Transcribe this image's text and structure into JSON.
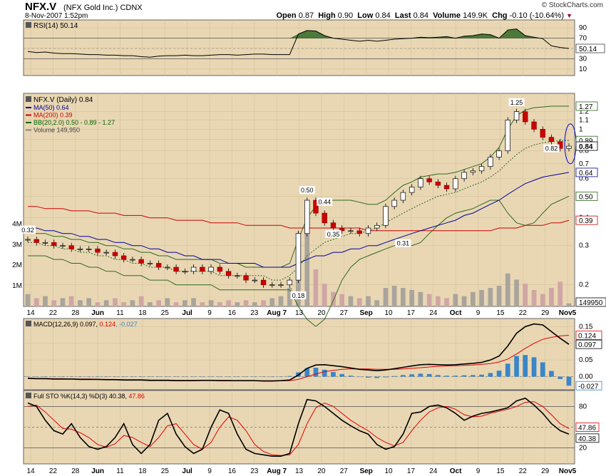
{
  "header": {
    "symbol": "NFX.V",
    "name": "(NFX Gold Inc.)",
    "exchange": "CDNX",
    "datetime": "8-Nov-2007 1:52pm",
    "open_label": "Open",
    "open": "0.87",
    "high_label": "High",
    "high": "0.90",
    "low_label": "Low",
    "low": "0.84",
    "last_label": "Last",
    "last": "0.84",
    "volume_label": "Volume",
    "volume": "149.9K",
    "chg_label": "Chg",
    "chg": "-0.10 (-10.64%)",
    "logo": "© StockCharts.com"
  },
  "chart_data": [
    {
      "type": "line",
      "panel": "rsi",
      "title": "RSI(14) 50.14",
      "y_ticks": [
        10,
        30,
        50,
        70,
        90
      ],
      "last_value_label": "50.14",
      "ylim": [
        0,
        100
      ],
      "series": [
        {
          "name": "RSI(14)",
          "values": [
            44,
            42,
            43,
            41,
            40,
            40,
            39,
            38,
            38,
            37,
            37,
            36,
            36,
            34,
            33,
            35,
            36,
            36,
            37,
            36,
            36,
            37,
            38,
            38,
            37,
            38,
            39,
            39,
            38,
            38,
            38,
            78,
            85,
            84,
            75,
            70,
            68,
            66,
            64,
            66,
            64,
            66,
            68,
            69,
            70,
            72,
            71,
            72,
            73,
            70,
            74,
            75,
            78,
            77,
            70,
            86,
            88,
            75,
            72,
            69,
            55,
            52,
            50
          ]
        },
        {
          "name": "Upper",
          "values": [
            70
          ]
        },
        {
          "name": "Lower",
          "values": [
            30
          ]
        }
      ]
    },
    {
      "type": "candlestick",
      "panel": "price",
      "title": "NFX.V (Daily) 0.84",
      "scale": "log",
      "ylim": [
        0.16,
        1.45
      ],
      "y_ticks": [
        0.2,
        0.3,
        0.4,
        0.5,
        0.6,
        0.7,
        0.8,
        0.9,
        1.0,
        1.1,
        1.2
      ],
      "volume_ticks": [
        "1M",
        "2M",
        "3M",
        "4M"
      ],
      "legend": [
        {
          "name": "MA(50) 0.64",
          "color": "#000099"
        },
        {
          "name": "MA(200) 0.39",
          "color": "#cc0000"
        },
        {
          "name": "BB(20,2.0) 0.50 - 0.89 - 1.27",
          "color": "#006600"
        },
        {
          "name": "Volume 149,950",
          "color": "#888888"
        }
      ],
      "annotations": [
        "0.32",
        "0.50",
        "0.44",
        "0.35",
        "0.31",
        "0.18",
        "1.25",
        "0.82"
      ],
      "right_labels": [
        "1.27",
        "0.89",
        "0.84",
        "0.64",
        "0.50",
        "0.39",
        "149950"
      ],
      "last_value_label": "0.84",
      "close": [
        0.32,
        0.31,
        0.31,
        0.3,
        0.3,
        0.29,
        0.29,
        0.29,
        0.28,
        0.28,
        0.27,
        0.26,
        0.26,
        0.25,
        0.25,
        0.24,
        0.24,
        0.23,
        0.23,
        0.24,
        0.23,
        0.24,
        0.23,
        0.22,
        0.22,
        0.21,
        0.21,
        0.2,
        0.2,
        0.2,
        0.21,
        0.34,
        0.48,
        0.42,
        0.38,
        0.36,
        0.35,
        0.35,
        0.34,
        0.36,
        0.37,
        0.45,
        0.48,
        0.52,
        0.55,
        0.6,
        0.58,
        0.56,
        0.54,
        0.6,
        0.64,
        0.65,
        0.68,
        0.75,
        0.8,
        1.1,
        1.2,
        1.08,
        1.0,
        0.92,
        0.88,
        0.82,
        0.84
      ],
      "ma50": [
        0.36,
        0.36,
        0.35,
        0.35,
        0.34,
        0.34,
        0.33,
        0.33,
        0.32,
        0.32,
        0.31,
        0.31,
        0.3,
        0.3,
        0.29,
        0.29,
        0.28,
        0.28,
        0.27,
        0.27,
        0.26,
        0.26,
        0.26,
        0.25,
        0.25,
        0.25,
        0.25,
        0.24,
        0.24,
        0.24,
        0.24,
        0.25,
        0.26,
        0.27,
        0.27,
        0.28,
        0.28,
        0.29,
        0.29,
        0.3,
        0.3,
        0.31,
        0.32,
        0.33,
        0.34,
        0.35,
        0.36,
        0.37,
        0.38,
        0.39,
        0.41,
        0.42,
        0.44,
        0.46,
        0.48,
        0.51,
        0.54,
        0.57,
        0.59,
        0.61,
        0.62,
        0.63,
        0.64
      ],
      "ma200": [
        0.45,
        0.45,
        0.44,
        0.44,
        0.44,
        0.43,
        0.43,
        0.43,
        0.42,
        0.42,
        0.42,
        0.41,
        0.41,
        0.41,
        0.4,
        0.4,
        0.4,
        0.39,
        0.39,
        0.39,
        0.39,
        0.38,
        0.38,
        0.38,
        0.38,
        0.37,
        0.37,
        0.37,
        0.37,
        0.37,
        0.36,
        0.36,
        0.36,
        0.36,
        0.36,
        0.36,
        0.36,
        0.36,
        0.36,
        0.35,
        0.35,
        0.35,
        0.35,
        0.35,
        0.35,
        0.35,
        0.35,
        0.35,
        0.35,
        0.35,
        0.35,
        0.35,
        0.35,
        0.35,
        0.36,
        0.36,
        0.36,
        0.37,
        0.37,
        0.37,
        0.38,
        0.38,
        0.39
      ],
      "bb_upper": [
        0.35,
        0.34,
        0.34,
        0.33,
        0.33,
        0.32,
        0.32,
        0.31,
        0.31,
        0.3,
        0.3,
        0.29,
        0.29,
        0.28,
        0.28,
        0.27,
        0.27,
        0.26,
        0.26,
        0.26,
        0.26,
        0.26,
        0.25,
        0.25,
        0.25,
        0.24,
        0.24,
        0.24,
        0.24,
        0.24,
        0.25,
        0.32,
        0.4,
        0.45,
        0.47,
        0.48,
        0.48,
        0.48,
        0.47,
        0.46,
        0.46,
        0.48,
        0.52,
        0.56,
        0.58,
        0.61,
        0.62,
        0.63,
        0.63,
        0.64,
        0.66,
        0.68,
        0.7,
        0.75,
        0.83,
        1.0,
        1.15,
        1.22,
        1.25,
        1.26,
        1.27,
        1.27,
        1.27
      ],
      "bb_mid": [
        0.31,
        0.31,
        0.3,
        0.3,
        0.29,
        0.29,
        0.28,
        0.28,
        0.27,
        0.27,
        0.26,
        0.26,
        0.25,
        0.25,
        0.24,
        0.24,
        0.24,
        0.23,
        0.23,
        0.23,
        0.23,
        0.23,
        0.22,
        0.22,
        0.22,
        0.22,
        0.22,
        0.22,
        0.21,
        0.21,
        0.22,
        0.24,
        0.27,
        0.29,
        0.31,
        0.32,
        0.33,
        0.34,
        0.34,
        0.35,
        0.36,
        0.38,
        0.4,
        0.42,
        0.44,
        0.46,
        0.48,
        0.5,
        0.51,
        0.52,
        0.54,
        0.56,
        0.58,
        0.61,
        0.65,
        0.71,
        0.77,
        0.82,
        0.85,
        0.87,
        0.88,
        0.89,
        0.89
      ],
      "bb_lower": [
        0.27,
        0.27,
        0.27,
        0.26,
        0.26,
        0.25,
        0.25,
        0.24,
        0.24,
        0.23,
        0.23,
        0.22,
        0.22,
        0.22,
        0.21,
        0.21,
        0.21,
        0.2,
        0.2,
        0.2,
        0.2,
        0.2,
        0.19,
        0.19,
        0.19,
        0.19,
        0.19,
        0.19,
        0.19,
        0.19,
        0.19,
        0.16,
        0.14,
        0.13,
        0.14,
        0.17,
        0.21,
        0.24,
        0.26,
        0.27,
        0.28,
        0.29,
        0.3,
        0.3,
        0.3,
        0.31,
        0.34,
        0.37,
        0.4,
        0.42,
        0.43,
        0.44,
        0.46,
        0.48,
        0.48,
        0.42,
        0.38,
        0.37,
        0.38,
        0.42,
        0.46,
        0.48,
        0.5
      ],
      "volume": [
        0.6,
        0.4,
        0.5,
        0.3,
        0.4,
        0.5,
        0.3,
        0.4,
        0.2,
        0.3,
        0.4,
        0.2,
        0.3,
        0.5,
        0.2,
        0.3,
        0.4,
        0.2,
        0.3,
        0.4,
        0.2,
        0.3,
        0.2,
        0.3,
        0.2,
        0.3,
        0.2,
        0.3,
        0.4,
        0.5,
        0.9,
        2.1,
        3.9,
        1.8,
        1.1,
        0.7,
        0.6,
        0.5,
        0.4,
        0.5,
        0.3,
        0.9,
        1.0,
        0.9,
        0.8,
        0.7,
        0.6,
        0.5,
        0.4,
        0.6,
        0.5,
        0.7,
        0.8,
        0.9,
        1.0,
        1.6,
        1.3,
        1.1,
        0.8,
        0.6,
        0.9,
        1.2,
        0.15
      ]
    },
    {
      "type": "line",
      "panel": "macd",
      "title": "MACD(12,26,9) 0.097, 0.124, -0.027",
      "title_parts": [
        "MACD(12,26,9) 0.097, ",
        "0.124",
        ", -0.027"
      ],
      "ylim": [
        -0.035,
        0.17
      ],
      "y_ticks": [
        0.0,
        0.05,
        0.1,
        0.15
      ],
      "right_labels": [
        "0.124",
        "0.097",
        "-0.027"
      ],
      "series": [
        {
          "name": "MACD",
          "values": [
            -0.005,
            -0.006,
            -0.006,
            -0.007,
            -0.007,
            -0.007,
            -0.008,
            -0.008,
            -0.008,
            -0.009,
            -0.009,
            -0.01,
            -0.01,
            -0.01,
            -0.011,
            -0.011,
            -0.011,
            -0.012,
            -0.012,
            -0.012,
            -0.011,
            -0.011,
            -0.012,
            -0.012,
            -0.012,
            -0.012,
            -0.012,
            -0.013,
            -0.013,
            -0.012,
            -0.01,
            0.005,
            0.025,
            0.035,
            0.036,
            0.033,
            0.03,
            0.026,
            0.022,
            0.02,
            0.018,
            0.02,
            0.024,
            0.028,
            0.032,
            0.036,
            0.037,
            0.036,
            0.035,
            0.036,
            0.038,
            0.04,
            0.043,
            0.05,
            0.062,
            0.092,
            0.13,
            0.15,
            0.158,
            0.155,
            0.135,
            0.115,
            0.097
          ]
        },
        {
          "name": "Signal",
          "values": [
            -0.004,
            -0.005,
            -0.005,
            -0.006,
            -0.006,
            -0.007,
            -0.007,
            -0.007,
            -0.008,
            -0.008,
            -0.008,
            -0.009,
            -0.009,
            -0.009,
            -0.01,
            -0.01,
            -0.01,
            -0.011,
            -0.011,
            -0.011,
            -0.011,
            -0.011,
            -0.011,
            -0.011,
            -0.012,
            -0.012,
            -0.012,
            -0.012,
            -0.012,
            -0.012,
            -0.012,
            -0.008,
            0.0,
            0.008,
            0.015,
            0.019,
            0.022,
            0.023,
            0.023,
            0.023,
            0.022,
            0.022,
            0.022,
            0.023,
            0.025,
            0.027,
            0.029,
            0.031,
            0.032,
            0.033,
            0.034,
            0.035,
            0.037,
            0.039,
            0.044,
            0.053,
            0.068,
            0.085,
            0.1,
            0.112,
            0.118,
            0.122,
            0.124
          ]
        },
        {
          "name": "Histogram",
          "values": [
            -0.001,
            -0.001,
            -0.001,
            -0.001,
            -0.001,
            0.0,
            -0.001,
            -0.001,
            0.0,
            -0.001,
            -0.001,
            -0.001,
            -0.001,
            -0.001,
            -0.001,
            -0.001,
            -0.001,
            -0.001,
            -0.001,
            -0.001,
            0.0,
            0.0,
            -0.001,
            -0.001,
            0.0,
            0.0,
            0.0,
            -0.001,
            -0.001,
            0.0,
            0.002,
            0.013,
            0.025,
            0.027,
            0.021,
            0.014,
            0.008,
            0.003,
            -0.001,
            -0.003,
            -0.004,
            -0.002,
            0.002,
            0.005,
            0.007,
            0.009,
            0.008,
            0.005,
            0.003,
            0.003,
            0.004,
            0.005,
            0.006,
            0.011,
            0.018,
            0.039,
            0.062,
            0.065,
            0.058,
            0.043,
            0.017,
            -0.007,
            -0.027
          ]
        }
      ]
    },
    {
      "type": "line",
      "panel": "sto",
      "title": "Full STO %K(14,3) %D(3) 40.38, 47.86",
      "title_parts": [
        "Full STO %K(14,3) %D(3) 40.38, ",
        "47.86"
      ],
      "ylim": [
        0,
        100
      ],
      "y_ticks": [
        20,
        50,
        80
      ],
      "right_labels": [
        "47.86",
        "40.38"
      ],
      "series": [
        {
          "name": "%K",
          "values": [
            85,
            80,
            60,
            45,
            40,
            55,
            35,
            22,
            18,
            22,
            35,
            55,
            25,
            12,
            25,
            60,
            70,
            40,
            22,
            12,
            18,
            50,
            75,
            70,
            40,
            18,
            12,
            10,
            8,
            8,
            12,
            55,
            90,
            88,
            80,
            70,
            60,
            52,
            45,
            40,
            25,
            18,
            22,
            40,
            70,
            72,
            80,
            82,
            78,
            70,
            60,
            66,
            70,
            72,
            75,
            78,
            88,
            92,
            82,
            70,
            55,
            45,
            40
          ]
        },
        {
          "name": "%D",
          "values": [
            80,
            82,
            72,
            60,
            48,
            47,
            42,
            35,
            25,
            21,
            26,
            38,
            35,
            28,
            22,
            35,
            52,
            55,
            40,
            25,
            18,
            28,
            50,
            65,
            60,
            45,
            25,
            15,
            10,
            9,
            10,
            25,
            55,
            78,
            85,
            80,
            70,
            60,
            52,
            45,
            35,
            28,
            23,
            28,
            45,
            60,
            72,
            78,
            80,
            76,
            68,
            65,
            66,
            70,
            73,
            76,
            80,
            86,
            87,
            80,
            68,
            55,
            48
          ]
        }
      ]
    }
  ],
  "x_labels": [
    "14",
    "22",
    "28",
    "Jun",
    "11",
    "18",
    "25",
    "Jul",
    "9",
    "16",
    "23",
    "Aug 7",
    "13",
    "20",
    "27",
    "Sep",
    "10",
    "17",
    "24",
    "Oct",
    "9",
    "15",
    "22",
    "29",
    "Nov5"
  ]
}
